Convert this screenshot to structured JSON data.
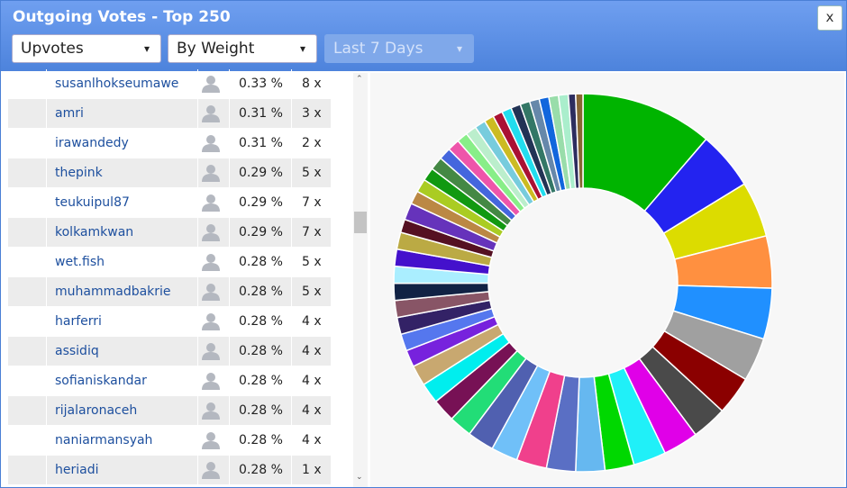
{
  "header": {
    "title": "Outgoing Votes - Top 250",
    "close": "x",
    "dropdowns": [
      "Upvotes",
      "By Weight",
      "Last 7 Days"
    ]
  },
  "table": {
    "rows": [
      [
        "susanlhokseumawe",
        "0.33 %",
        "8 x"
      ],
      [
        "amri",
        "0.31 %",
        "3 x"
      ],
      [
        "irawandedy",
        "0.31 %",
        "2 x"
      ],
      [
        "thepink",
        "0.29 %",
        "5 x"
      ],
      [
        "teukuipul87",
        "0.29 %",
        "7 x"
      ],
      [
        "kolkamkwan",
        "0.29 %",
        "7 x"
      ],
      [
        "wet.fish",
        "0.28 %",
        "5 x"
      ],
      [
        "muhammadbakrie",
        "0.28 %",
        "5 x"
      ],
      [
        "harferri",
        "0.28 %",
        "4 x"
      ],
      [
        "assidiq",
        "0.28 %",
        "4 x"
      ],
      [
        "sofianiskandar",
        "0.28 %",
        "4 x"
      ],
      [
        "rijalaronaceh",
        "0.28 %",
        "4 x"
      ],
      [
        "naniarmansyah",
        "0.28 %",
        "4 x"
      ],
      [
        "heriadi",
        "0.28 %",
        "1 x"
      ]
    ]
  },
  "chart": {
    "type": "pie",
    "values": [
      10.9,
      4.8,
      4.6,
      4.3,
      4.2,
      3.6,
      3.2,
      2.9,
      2.9,
      2.7,
      2.4,
      2.4,
      2.4,
      2.5,
      2.2,
      2.2,
      1.9,
      1.9,
      1.7,
      1.7,
      1.4,
      1.4,
      1.4,
      1.4,
      1.4,
      1.4,
      1.4,
      1.4,
      1.1,
      1.4,
      1.1,
      1.1,
      1.1,
      1.1,
      1.0,
      1.0,
      0.9,
      0.9,
      0.9,
      0.8,
      0.8,
      0.8,
      0.8,
      0.8,
      0.8,
      0.8,
      0.8,
      0.8,
      0.6,
      0.6
    ],
    "colors": [
      "#00b400",
      "#2323f0",
      "#dcdc00",
      "#ff9040",
      "#2090ff",
      "#a0a0a0",
      "#8b0000",
      "#4a4a4a",
      "#e000e8",
      "#20f0f8",
      "#00d800",
      "#66b8f0",
      "#5a6fc4",
      "#f0408c",
      "#70c0f8",
      "#5060b0",
      "#22dd77",
      "#771155",
      "#00eeee",
      "#c8a870",
      "#7722dd",
      "#5577ee",
      "#332266",
      "#885566",
      "#112244",
      "#aaeeff",
      "#4411cc",
      "#bbaa44",
      "#551122",
      "#6633bb",
      "#bb8844",
      "#aacc22",
      "#119911",
      "#448844",
      "#4466dd",
      "#ee55aa",
      "#88ee88",
      "#bbeecc",
      "#77ccdd",
      "#ccbb22",
      "#aa1133",
      "#22ddee",
      "#223355",
      "#337766",
      "#6688aa",
      "#1166dd",
      "#99ddaa",
      "#aaeecc",
      "#2d2d5f",
      "#886633"
    ]
  }
}
